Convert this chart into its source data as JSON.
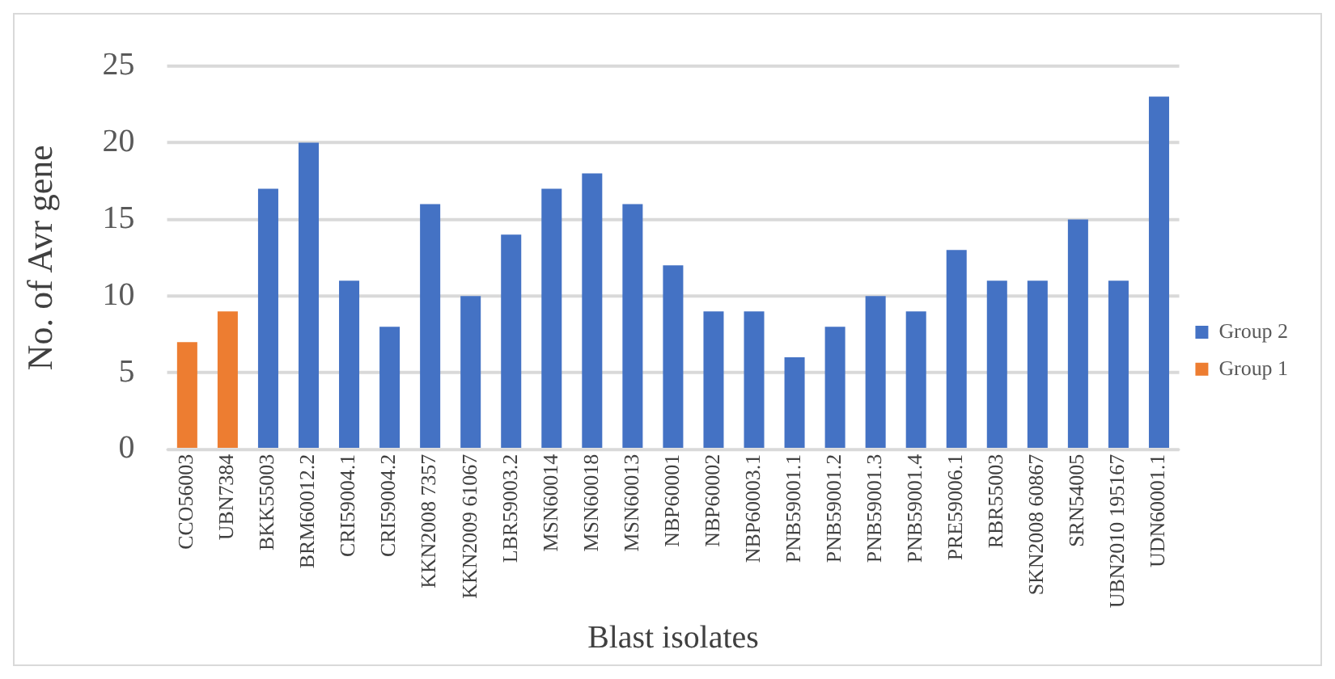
{
  "chart_data": {
    "type": "bar",
    "xlabel": "Blast isolates",
    "ylabel": "No. of Avr gene",
    "categories": [
      "CCO56003",
      "UBN7384",
      "BKK55003",
      "BRM60012.2",
      "CRI59004.1",
      "CRI59004.2",
      "KKN2008 7357",
      "KKN2009 61067",
      "LBR59003.2",
      "MSN60014",
      "MSN60018",
      "MSN60013",
      "NBP60001",
      "NBP60002",
      "NBP60003.1",
      "PNB59001.1",
      "PNB59001.2",
      "PNB59001.3",
      "PNB59001.4",
      "PRE59006.1",
      "RBR55003",
      "SKN2008 60867",
      "SRN54005",
      "UBN2010 195167",
      "UDN60001.1"
    ],
    "series": [
      {
        "name": "Group 2",
        "color": "#4472c4",
        "values": [
          null,
          null,
          17,
          20,
          11,
          8,
          16,
          10,
          14,
          17,
          18,
          16,
          12,
          9,
          9,
          6,
          8,
          10,
          9,
          13,
          11,
          11,
          15,
          11,
          23
        ]
      },
      {
        "name": "Group 1",
        "color": "#ed7d31",
        "values": [
          7,
          9,
          null,
          null,
          null,
          null,
          null,
          null,
          null,
          null,
          null,
          null,
          null,
          null,
          null,
          null,
          null,
          null,
          null,
          null,
          null,
          null,
          null,
          null,
          null
        ]
      }
    ],
    "ylim": [
      0,
      25
    ],
    "yticks": [
      0,
      5,
      10,
      15,
      20,
      25
    ],
    "grid": "y",
    "legend": "right"
  }
}
